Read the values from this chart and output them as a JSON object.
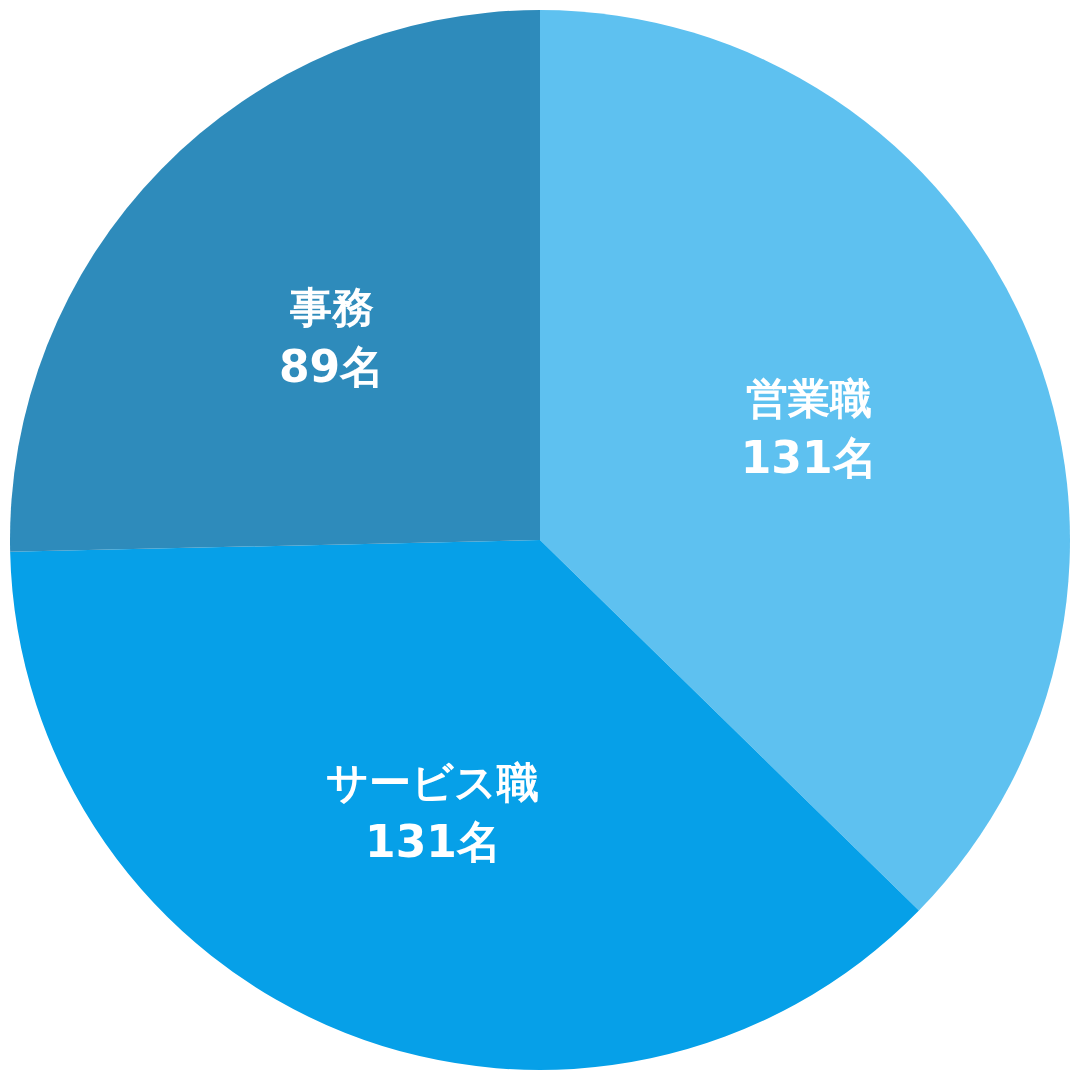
{
  "chart_data": {
    "type": "pie",
    "categories": [
      "営業職",
      "サービス職",
      "事務"
    ],
    "values": [
      131,
      131,
      89
    ],
    "value_labels": [
      "131名",
      "131名",
      "89名"
    ],
    "colors": [
      "#5ec1f0",
      "#06a0e8",
      "#2e8bbb"
    ]
  }
}
